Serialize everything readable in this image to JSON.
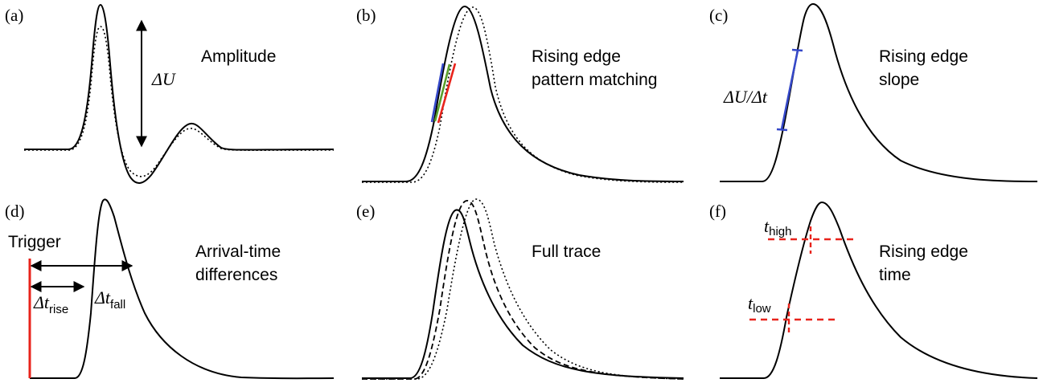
{
  "panels": [
    {
      "id": "a",
      "tag": "(a)",
      "title": [
        "Amplitude"
      ],
      "annotation": "ΔU"
    },
    {
      "id": "b",
      "tag": "(b)",
      "title": [
        "Rising edge",
        "pattern matching"
      ]
    },
    {
      "id": "c",
      "tag": "(c)",
      "title": [
        "Rising edge",
        "slope"
      ],
      "annotation": "ΔU/Δt"
    },
    {
      "id": "d",
      "tag": "(d)",
      "title": [
        "Arrival-time",
        "differences"
      ],
      "trigger": "Trigger",
      "t_rise": {
        "sym": "Δt",
        "sub": "rise"
      },
      "t_fall": {
        "sym": "Δt",
        "sub": "fall"
      }
    },
    {
      "id": "e",
      "tag": "(e)",
      "title": [
        "Full trace"
      ]
    },
    {
      "id": "f",
      "tag": "(f)",
      "title": [
        "Rising edge",
        "time"
      ],
      "t_high": {
        "sym": "t",
        "sub": "high"
      },
      "t_low": {
        "sym": "t",
        "sub": "low"
      }
    }
  ],
  "colors": {
    "red": "#e8231b",
    "blue": "#3548c8",
    "green": "#5aa02c",
    "trace": "#000000"
  }
}
